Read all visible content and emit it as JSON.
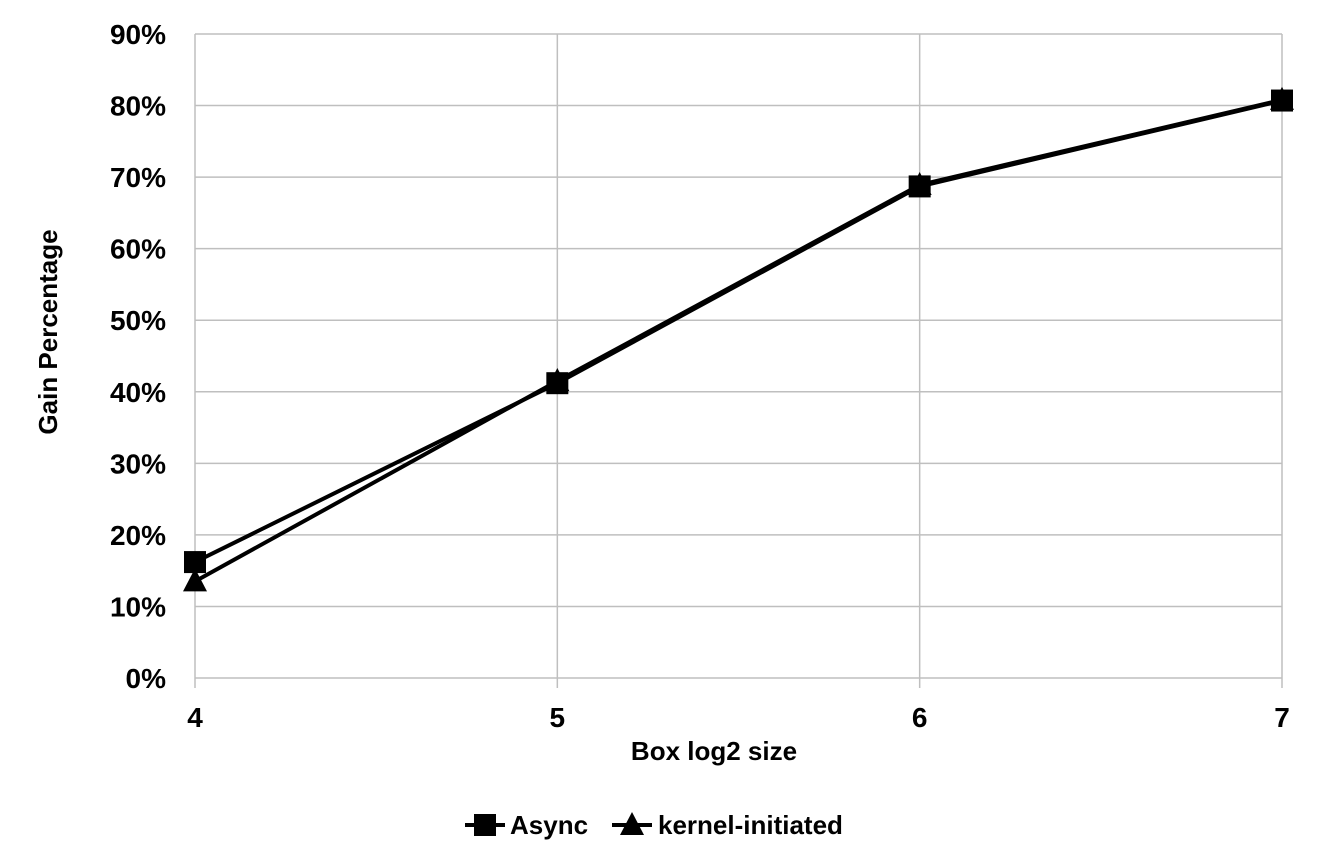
{
  "chart_data": {
    "type": "line",
    "x": [
      4,
      5,
      6,
      7
    ],
    "x_tick_labels": [
      "4",
      "5",
      "6",
      "7"
    ],
    "y_tick_labels": [
      "0%",
      "10%",
      "20%",
      "30%",
      "40%",
      "50%",
      "60%",
      "70%",
      "80%",
      "90%"
    ],
    "xlabel": "Box log2 size",
    "ylabel": "Gain Percentage",
    "ylim": [
      0,
      90
    ],
    "xlim": [
      4,
      7
    ],
    "grid": "horizontal",
    "legend_position": "bottom",
    "series": [
      {
        "name": "Async",
        "marker": "square",
        "color": "#000000",
        "values": [
          16.2,
          41.2,
          68.7,
          80.7
        ]
      },
      {
        "name": "kernel-initiated",
        "marker": "triangle",
        "color": "#000000",
        "values": [
          13.5,
          41.5,
          68.9,
          80.8
        ]
      }
    ]
  }
}
